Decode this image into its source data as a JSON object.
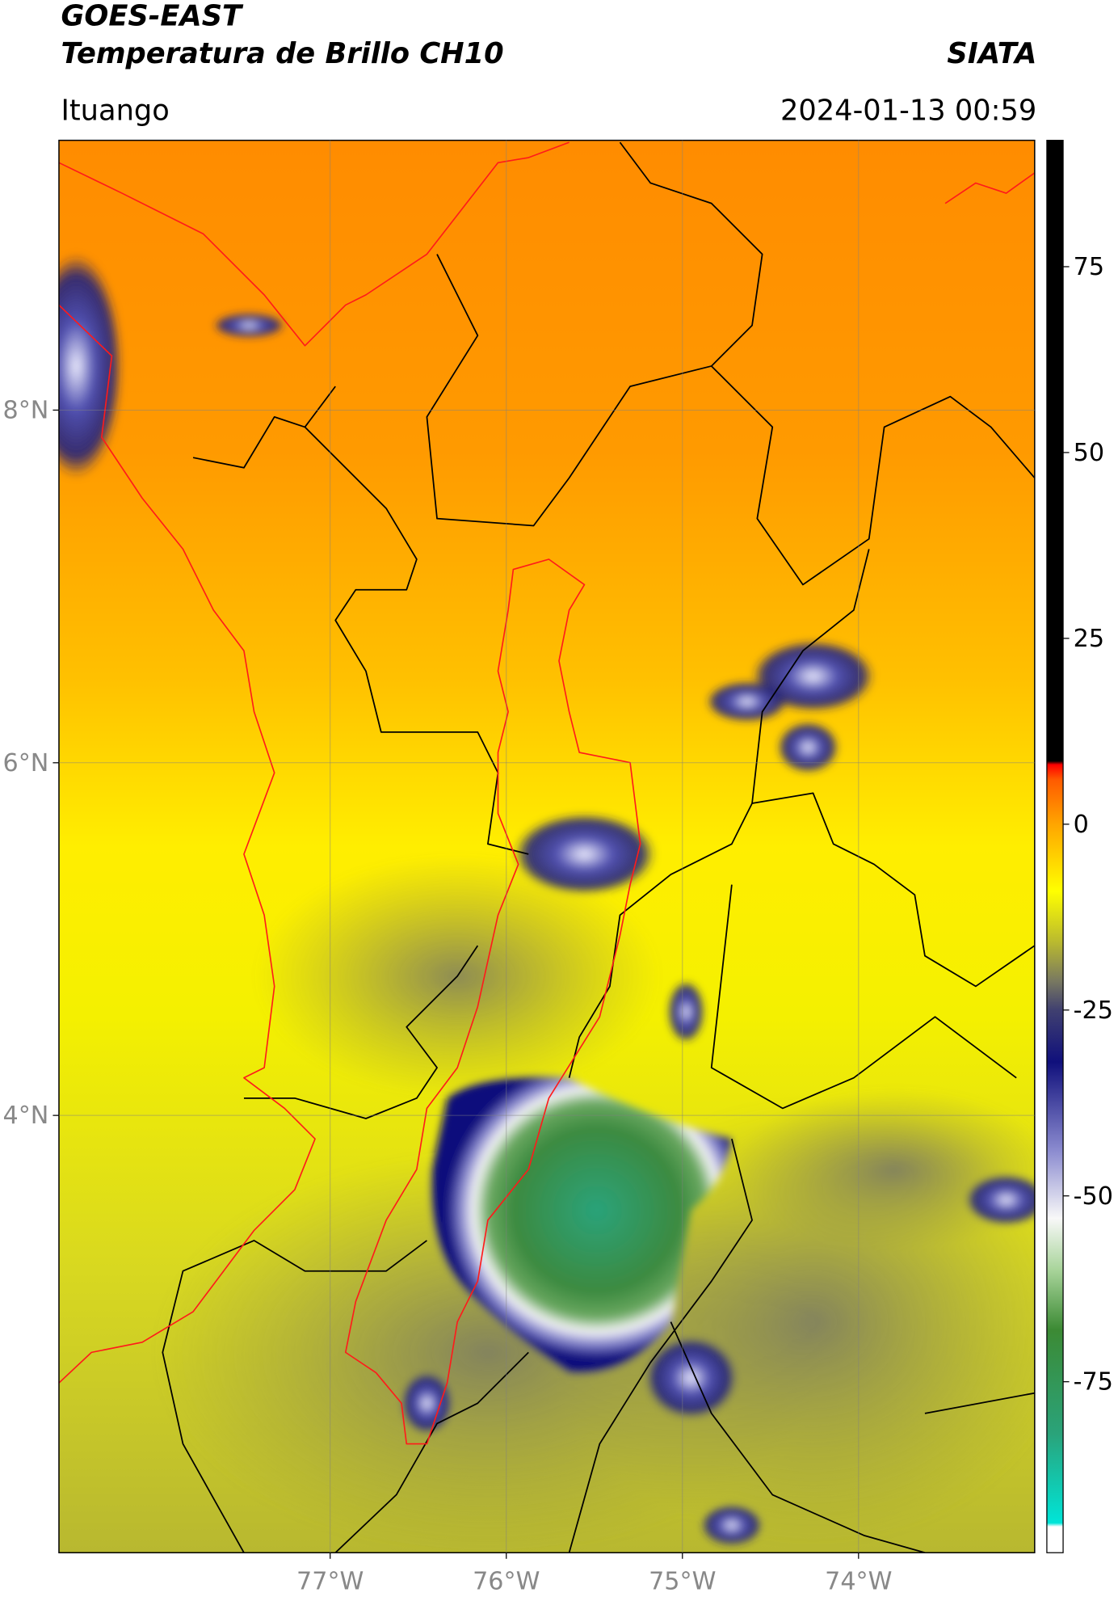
{
  "header": {
    "title": "GOES-EAST",
    "subtitle": "Temperatura de Brillo CH10",
    "brand": "SIATA",
    "location": "Ituango",
    "timestamp": "2024-01-13 00:59"
  },
  "map": {
    "xlim": [
      -78.54,
      -73.0
    ],
    "ylim": [
      1.52,
      9.53
    ],
    "grid": true,
    "xticks": [
      {
        "value": -77,
        "label": "77°W"
      },
      {
        "value": -76,
        "label": "76°W"
      },
      {
        "value": -75,
        "label": "75°W"
      },
      {
        "value": -74,
        "label": "74°W"
      }
    ],
    "yticks": [
      {
        "value": 8,
        "label": "8°N"
      },
      {
        "value": 6,
        "label": "6°N"
      },
      {
        "value": 4,
        "label": "4°N"
      }
    ]
  },
  "colorbar": {
    "clim": [
      -98,
      92
    ],
    "ticks": [
      -75,
      -50,
      -25,
      0,
      25,
      50,
      75
    ],
    "colormap": [
      {
        "value": -98,
        "color": "#ffffff"
      },
      {
        "value": -94.5,
        "color": "#ffffff"
      },
      {
        "value": -94,
        "color": "#00e5d8"
      },
      {
        "value": -82,
        "color": "#2aa37a"
      },
      {
        "value": -68,
        "color": "#3c8a34"
      },
      {
        "value": -60,
        "color": "#a8d49a"
      },
      {
        "value": -53,
        "color": "#f8f8f8"
      },
      {
        "value": -44,
        "color": "#8c8cd0"
      },
      {
        "value": -32,
        "color": "#10107c"
      },
      {
        "value": -25,
        "color": "#404070"
      },
      {
        "value": -21,
        "color": "#7a7a60"
      },
      {
        "value": -16,
        "color": "#b8b830"
      },
      {
        "value": -9,
        "color": "#ffff00"
      },
      {
        "value": 0,
        "color": "#ffa500"
      },
      {
        "value": 6,
        "color": "#ff5a00"
      },
      {
        "value": 8,
        "color": "#ff0000"
      },
      {
        "value": 8.5,
        "color": "#000000"
      },
      {
        "value": 92,
        "color": "#000000"
      }
    ]
  }
}
